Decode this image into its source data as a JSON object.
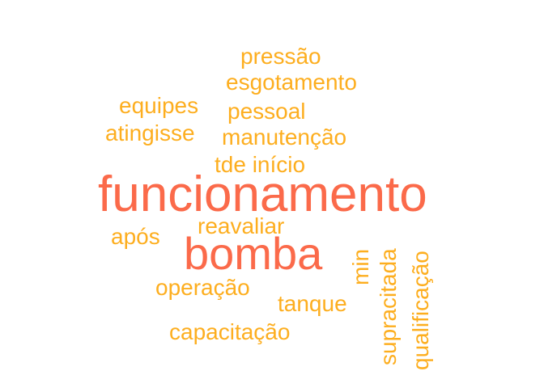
{
  "colors": {
    "primary": "#fb6a4a",
    "secondary": "#fdae1f"
  },
  "words": {
    "funcionamento": "funcionamento",
    "bomba": "bomba",
    "pressao": "pressão",
    "esgotamento": "esgotamento",
    "equipes": "equipes",
    "pessoal": "pessoal",
    "atingisse": "atingisse",
    "manutencao": "manutenção",
    "tde_inicio": "tde início",
    "reavaliar": "reavaliar",
    "apos": "após",
    "min": "min",
    "supracitada": "supracitada",
    "qualificacao": "qualificação",
    "operacao": "operação",
    "tanque": "tanque",
    "capacitacao": "capacitação"
  }
}
